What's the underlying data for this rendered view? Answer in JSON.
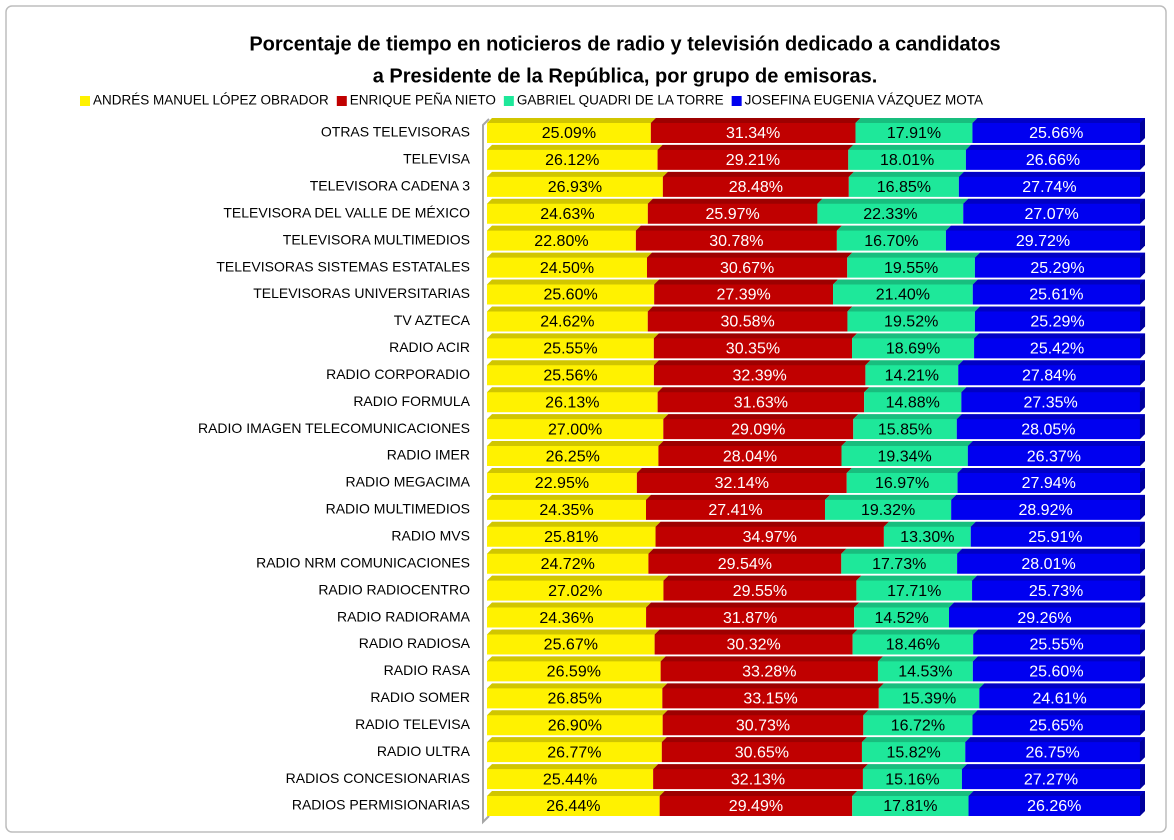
{
  "chart_data": {
    "type": "stacked_percent_bar_3d",
    "title": [
      "Porcentaje de tiempo en noticieros de radio y televisión dedicado a candidatos",
      "a Presidente de la República, por grupo de emisoras."
    ],
    "categories": [
      "OTRAS TELEVISORAS",
      "TELEVISA",
      "TELEVISORA CADENA 3",
      "TELEVISORA DEL VALLE DE MÉXICO",
      "TELEVISORA MULTIMEDIOS",
      "TELEVISORAS SISTEMAS ESTATALES",
      "TELEVISORAS UNIVERSITARIAS",
      "TV AZTECA",
      "RADIO ACIR",
      "RADIO CORPORADIO",
      "RADIO FORMULA",
      "RADIO IMAGEN TELECOMUNICACIONES",
      "RADIO IMER",
      "RADIO MEGACIMA",
      "RADIO MULTIMEDIOS",
      "RADIO MVS",
      "RADIO NRM COMUNICACIONES",
      "RADIO RADIOCENTRO",
      "RADIO RADIORAMA",
      "RADIO RADIOSA",
      "RADIO RASA",
      "RADIO SOMER",
      "RADIO TELEVISA",
      "RADIO ULTRA",
      "RADIOS CONCESIONARIAS",
      "RADIOS PERMISIONARIAS"
    ],
    "xlim": [
      0,
      100
    ],
    "legend": "top",
    "series": [
      {
        "name": "ANDRÉS MANUEL LÓPEZ OBRADOR",
        "color": "#fff200",
        "label_color": "#000000",
        "values": [
          25.09,
          26.12,
          26.93,
          24.63,
          22.8,
          24.5,
          25.6,
          24.62,
          25.55,
          25.56,
          26.13,
          27.0,
          26.25,
          22.95,
          24.35,
          25.81,
          24.72,
          27.02,
          24.36,
          25.67,
          26.59,
          26.85,
          26.9,
          26.77,
          25.44,
          26.44
        ],
        "value_labels": [
          "25.09%",
          "26.12%",
          "26.93%",
          "24.63%",
          "22.80%",
          "24.50%",
          "25.60%",
          "24.62%",
          "25.55%",
          "25.56%",
          "26.13%",
          "27.00%",
          "26.25%",
          "22.95%",
          "24.35%",
          "25.81%",
          "24.72%",
          "27.02%",
          "24.36%",
          "25.67%",
          "26.59%",
          "26.85%",
          "26.90%",
          "26.77%",
          "25.44%",
          "26.44%"
        ]
      },
      {
        "name": "ENRIQUE PEÑA NIETO",
        "color": "#c00000",
        "label_color": "#ffffff",
        "values": [
          31.34,
          29.21,
          28.48,
          25.97,
          30.78,
          30.67,
          27.39,
          30.58,
          30.35,
          32.39,
          31.63,
          29.09,
          28.04,
          32.14,
          27.41,
          34.97,
          29.54,
          29.55,
          31.87,
          30.32,
          33.28,
          33.15,
          30.73,
          30.65,
          32.13,
          29.49
        ],
        "value_labels": [
          "31.34%",
          "29.21%",
          "28.48%",
          "25.97%",
          "30.78%",
          "30.67%",
          "27.39%",
          "30.58%",
          "30.35%",
          "32.39%",
          "31.63%",
          "29.09%",
          "28.04%",
          "32.14%",
          "27.41%",
          "34.97%",
          "29.54%",
          "29.55%",
          "31.87%",
          "30.32%",
          "33.28%",
          "33.15%",
          "30.73%",
          "30.65%",
          "32.13%",
          "29.49%"
        ]
      },
      {
        "name": "GABRIEL QUADRI DE LA TORRE",
        "color": "#1ee89a",
        "label_color": "#000000",
        "values": [
          17.91,
          18.01,
          16.85,
          22.33,
          16.7,
          19.55,
          21.4,
          19.52,
          18.69,
          14.21,
          14.88,
          15.85,
          19.34,
          16.97,
          19.32,
          13.3,
          17.73,
          17.71,
          14.52,
          18.46,
          14.53,
          15.39,
          16.72,
          15.82,
          15.16,
          17.81
        ],
        "value_labels": [
          "17.91%",
          "18.01%",
          "16.85%",
          "22.33%",
          "16.70%",
          "19.55%",
          "21.40%",
          "19.52%",
          "18.69%",
          "14.21%",
          "14.88%",
          "15.85%",
          "19.34%",
          "16.97%",
          "19.32%",
          "13.30%",
          "17.73%",
          "17.71%",
          "14.52%",
          "18.46%",
          "14.53%",
          "15.39%",
          "16.72%",
          "15.82%",
          "15.16%",
          "17.81%"
        ]
      },
      {
        "name": "JOSEFINA EUGENIA VÁZQUEZ MOTA",
        "color": "#0000f0",
        "label_color": "#ffffff",
        "values": [
          25.66,
          26.66,
          27.74,
          27.07,
          29.72,
          25.29,
          25.61,
          25.29,
          25.42,
          27.84,
          27.35,
          28.05,
          26.37,
          27.94,
          28.92,
          25.91,
          28.01,
          25.73,
          29.26,
          25.55,
          25.6,
          24.61,
          25.65,
          26.75,
          27.27,
          26.26
        ],
        "value_labels": [
          "25.66%",
          "26.66%",
          "27.74%",
          "27.07%",
          "29.72%",
          "25.29%",
          "25.61%",
          "25.29%",
          "25.42%",
          "27.84%",
          "27.35%",
          "28.05%",
          "26.37%",
          "27.94%",
          "28.92%",
          "25.91%",
          "28.01%",
          "25.73%",
          "29.26%",
          "25.55%",
          "25.60%",
          "24.61%",
          "25.65%",
          "26.75%",
          "27.27%",
          "26.26%"
        ]
      }
    ]
  }
}
